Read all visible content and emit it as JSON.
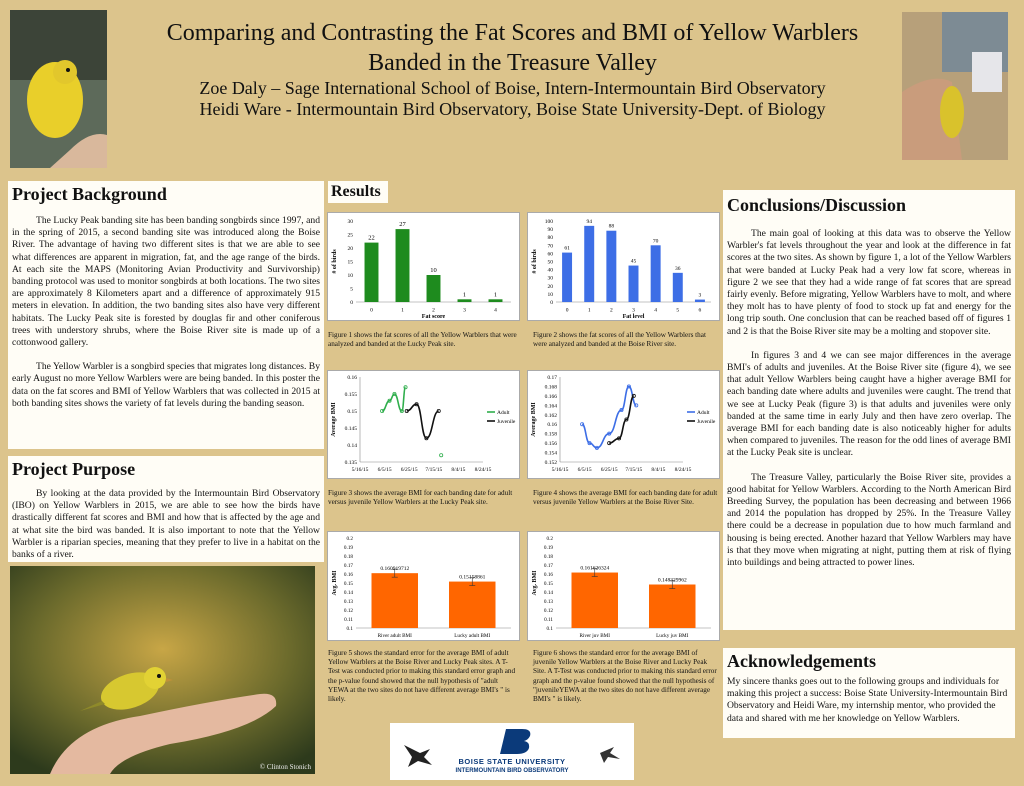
{
  "title": {
    "line1": "Comparing and Contrasting the Fat Scores and BMI of Yellow Warblers",
    "line2": "Banded in the Treasure Valley",
    "author1": "Zoe Daly – Sage International School of Boise, Intern-Intermountain Bird Observatory",
    "author2": "Heidi Ware - Intermountain Bird Observatory, Boise State University-Dept. of Biology"
  },
  "background": {
    "heading": "Project Background",
    "p1": "The Lucky Peak banding site has been banding songbirds since 1997, and in the spring of 2015, a second banding site was introduced along the Boise River. The advantage of having two different sites is that we are able to see what differences are apparent in migration, fat, and the age range of the birds. At each site the MAPS (Monitoring Avian Productivity and Survivorship) banding protocol was used to monitor songbirds at both locations.  The two sites are approximately 8 Kilometers apart and a difference of approximately 915 meters in elevation. In addition, the two banding sites also have very different habitats. The Lucky Peak site is forested by douglas fir and other coniferous trees with understory shrubs, where the Boise River site is made up of a cottonwood gallery.",
    "p2": "The Yellow Warbler is a songbird species that migrates long distances. By early August no more Yellow Warblers were are being banded. In this poster the data on the fat scores and BMI of Yellow Warblers that was collected in 2015 at both banding sites shows the variety of fat levels during the banding season."
  },
  "purpose": {
    "heading": "Project Purpose",
    "p1": "By looking at the data provided by the Intermountain Bird Observatory (IBO) on Yellow Warblers in 2015, we are able to see how the birds have drastically different fat scores and BMI and how that is affected by the age and at what site the bird was banded. It is also important to note that the Yellow Warbler is a riparian species, meaning that they prefer to live in a habitat on the banks of a river."
  },
  "photo_credit": "© Clinton Stonich",
  "results": {
    "heading": "Results",
    "captions": [
      "Figure 1 shows the fat scores of all the Yellow Warblers that were analyzed and banded at the Lucky Peak site.",
      "Figure 2 shows the fat scores of all the Yellow Warblers that were analyzed and banded at the Boise River site.",
      "Figure 3 shows the average BMI for each banding date for adult versus juvenile Yellow Warblers at the Lucky Peak site.",
      "Figure 4 shows the average BMI for each banding date for adult versus juvenile Yellow Warblers at the Boise River Site.",
      "Figure 5 shows the standard error for the average BMI of adult Yellow Warblers at the Boise River and Lucky Peak sites. A T-Test was conducted prior to making this standard error graph and the p-value found showed that the null hypothesis of \"adult YEWA at the two sites do not have different average BMI's \" is likely.",
      "Figure 6 shows the standard error for the average BMI of juvenile Yellow Warblers at the Boise River and Lucky Peak Site.    A T-Test was conducted prior to making this standard error graph and the p-value found showed that the null hypothesis of \"juvenileYEWA at the two sites do not have different average BMI's \" is likely."
    ]
  },
  "conclusions": {
    "heading": "Conclusions/Discussion",
    "p1": "The main goal of looking at this data was to observe the Yellow Warbler's fat levels throughout the year and look at the difference in fat scores at the two sites. As shown by figure 1, a lot of the Yellow Warblers that were banded at Lucky Peak had a very low fat score, whereas in figure 2 we see that they had a wide range of fat scores that are spread fairly evenly. Before migrating, Yellow Warblers have to molt, and where they molt has to have plenty of food to stock up fat and energy for the long trip south. One conclusion that can be reached based off of figures 1 and 2 is that the Boise River site may be a molting and stopover site.",
    "p2": "In figures 3 and 4 we can see major differences in the average BMI's of adults and juveniles. At the Boise River site (figure 4), we see that adult Yellow Warblers being caught have a higher average BMI for each banding date where adults and juveniles were caught. The trend that we see at Lucky Peak (figure 3) is that adults and juveniles were only banded at the same time in early July and then have zero overlap. The average BMI for each banding date is also noticeably higher for adults when compared to juveniles. The reason for the odd lines of average BMI at the Lucky Peak site is unclear.",
    "p3": "The Treasure Valley, particularly the Boise River site, provides a good habitat for Yellow Warblers. According to the North American Bird Breeding Survey, the population has been decreasing and between 1966 and 2014 the population has dropped by 25%. In the Treasure Valley there could be a decrease in population due to how much farmland and housing is being erected. Another hazard that Yellow Warblers may have is that they move when migrating at night, putting them at risk of flying into buildings and being attracted to power lines."
  },
  "acknowledgements": {
    "heading": "Acknowledgements",
    "p1": "My sincere thanks goes out to the following groups and individuals for making this project a success: Boise State University-Intermountain Bird Observatory and Heidi Ware, my internship mentor, who provided the data and shared with me her knowledge on Yellow Warblers."
  },
  "logo": {
    "line1": "BOISE STATE UNIVERSITY",
    "line2": "INTERMOUNTAIN BIRD OBSERVATORY"
  },
  "chart_data": [
    {
      "type": "bar",
      "categories": [
        "0",
        "1",
        "2",
        "3",
        "4"
      ],
      "values": [
        22,
        27,
        10,
        1,
        1
      ],
      "xlabel": "Fat score",
      "ylabel": "# of birds",
      "ylim": [
        0,
        30
      ],
      "yticks": [
        "0",
        "5",
        "10",
        "15",
        "20",
        "25",
        "30"
      ],
      "color": "#1e8b1e"
    },
    {
      "type": "bar",
      "categories": [
        "0",
        "1",
        "2",
        "3",
        "4",
        "5",
        "6"
      ],
      "values": [
        61,
        94,
        88,
        45,
        70,
        36,
        3
      ],
      "xlabel": "Fat level",
      "ylabel": "# of birds",
      "ylim": [
        0,
        100
      ],
      "yticks": [
        "0",
        "10",
        "20",
        "30",
        "40",
        "50",
        "60",
        "70",
        "80",
        "90",
        "100"
      ],
      "color": "#3d6ee6"
    },
    {
      "type": "line",
      "x": [
        "5/16/15",
        "6/5/15",
        "6/25/15",
        "7/15/15",
        "8/4/15",
        "8/24/15"
      ],
      "ylabel": "Average BMI",
      "ylim": [
        0.135,
        0.16
      ],
      "yticks": [
        "0.135",
        "0.14",
        "0.145",
        "0.15",
        "0.155",
        "0.16"
      ],
      "series": [
        {
          "name": "Adult",
          "color": "#2fae4c",
          "points": [
            [
              0.9,
              0.15
            ],
            [
              1.2,
              0.153
            ],
            [
              1.4,
              0.155
            ],
            [
              1.7,
              0.15
            ],
            [
              1.85,
              0.157
            ]
          ]
        },
        {
          "name": "Juvenile",
          "color": "#111111",
          "points": [
            [
              1.9,
              0.15
            ],
            [
              2.3,
              0.152
            ],
            [
              2.7,
              0.142
            ],
            [
              3.2,
              0.15
            ]
          ]
        },
        {
          "name": "",
          "color": "#2fae4c",
          "points": [
            [
              3.3,
              0.137
            ]
          ],
          "marker_only": true
        }
      ],
      "legend_position": "right"
    },
    {
      "type": "line",
      "x": [
        "5/16/15",
        "6/5/15",
        "6/25/15",
        "7/15/15",
        "8/4/15",
        "8/24/15"
      ],
      "ylabel": "Average BMI",
      "ylim": [
        0.152,
        0.17
      ],
      "yticks": [
        "0.152",
        "0.154",
        "0.156",
        "0.158",
        "0.16",
        "0.162",
        "0.164",
        "0.166",
        "0.168",
        "0.17"
      ],
      "series": [
        {
          "name": "Adult",
          "color": "#3d6ee6",
          "points": [
            [
              0.9,
              0.16
            ],
            [
              1.2,
              0.156
            ],
            [
              1.5,
              0.155
            ],
            [
              2.0,
              0.158
            ],
            [
              2.5,
              0.163
            ],
            [
              2.8,
              0.168
            ],
            [
              3.1,
              0.164
            ]
          ]
        },
        {
          "name": "Juvenile",
          "color": "#111111",
          "points": [
            [
              2.0,
              0.156
            ],
            [
              2.4,
              0.157
            ],
            [
              2.7,
              0.161
            ],
            [
              3.0,
              0.166
            ]
          ]
        }
      ],
      "legend_position": "right"
    },
    {
      "type": "bar",
      "categories": [
        "River adult BMI",
        "Lucky adult BMI"
      ],
      "values": [
        0.160919712,
        0.15158861
      ],
      "labels": [
        "0.160919712",
        "0.15158861"
      ],
      "ylabel": "Avg. BMI",
      "ylim": [
        0.1,
        0.2
      ],
      "yticks": [
        "0.1",
        "0.11",
        "0.12",
        "0.13",
        "0.14",
        "0.15",
        "0.16",
        "0.17",
        "0.18",
        "0.19",
        "0.2"
      ],
      "color": "#ff6600"
    },
    {
      "type": "bar",
      "categories": [
        "River juv BMI",
        "Lucky juv BMI"
      ],
      "values": [
        0.161626324,
        0.148329962
      ],
      "labels": [
        "0.161626324",
        "0.148329962"
      ],
      "ylabel": "Avg. BMI",
      "ylim": [
        0.1,
        0.2
      ],
      "yticks": [
        "0.1",
        "0.11",
        "0.12",
        "0.13",
        "0.14",
        "0.15",
        "0.16",
        "0.17",
        "0.18",
        "0.19",
        "0.2"
      ],
      "color": "#ff6600"
    }
  ]
}
